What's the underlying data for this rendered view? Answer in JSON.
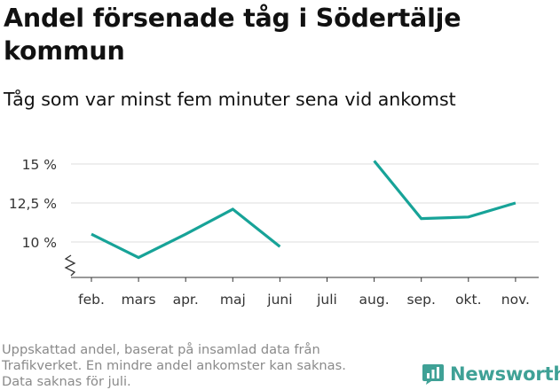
{
  "header": {
    "title": "Andel försenade tåg i Södertälje kommun",
    "subtitle": "Tåg som var minst fem minuter sena vid ankomst"
  },
  "footer": {
    "note_line1": "Uppskattad andel, baserat på insamlad data från",
    "note_line2": "Trafikverket. En mindre andel ankomster kan saknas.",
    "note_line3": "Data saknas för juli.",
    "brand": "Newsworthy"
  },
  "colors": {
    "line": "#17a398",
    "grid": "#dddddd",
    "axis": "#333333",
    "brand": "#3fa196"
  },
  "chart_data": {
    "type": "line",
    "categories": [
      "feb.",
      "mars",
      "apr.",
      "maj",
      "juni",
      "juli",
      "aug.",
      "sep.",
      "okt.",
      "nov."
    ],
    "series": [
      {
        "values": [
          10.5,
          9.0,
          10.5,
          12.1,
          9.7,
          null,
          15.2,
          11.5,
          11.6,
          12.5
        ]
      }
    ],
    "yticks": [
      10,
      12.5,
      15
    ],
    "ytick_labels": [
      "10 %",
      "12,5 %",
      "15 %"
    ],
    "ylim": [
      8,
      16
    ],
    "y_axis_break": true,
    "grid": true
  }
}
